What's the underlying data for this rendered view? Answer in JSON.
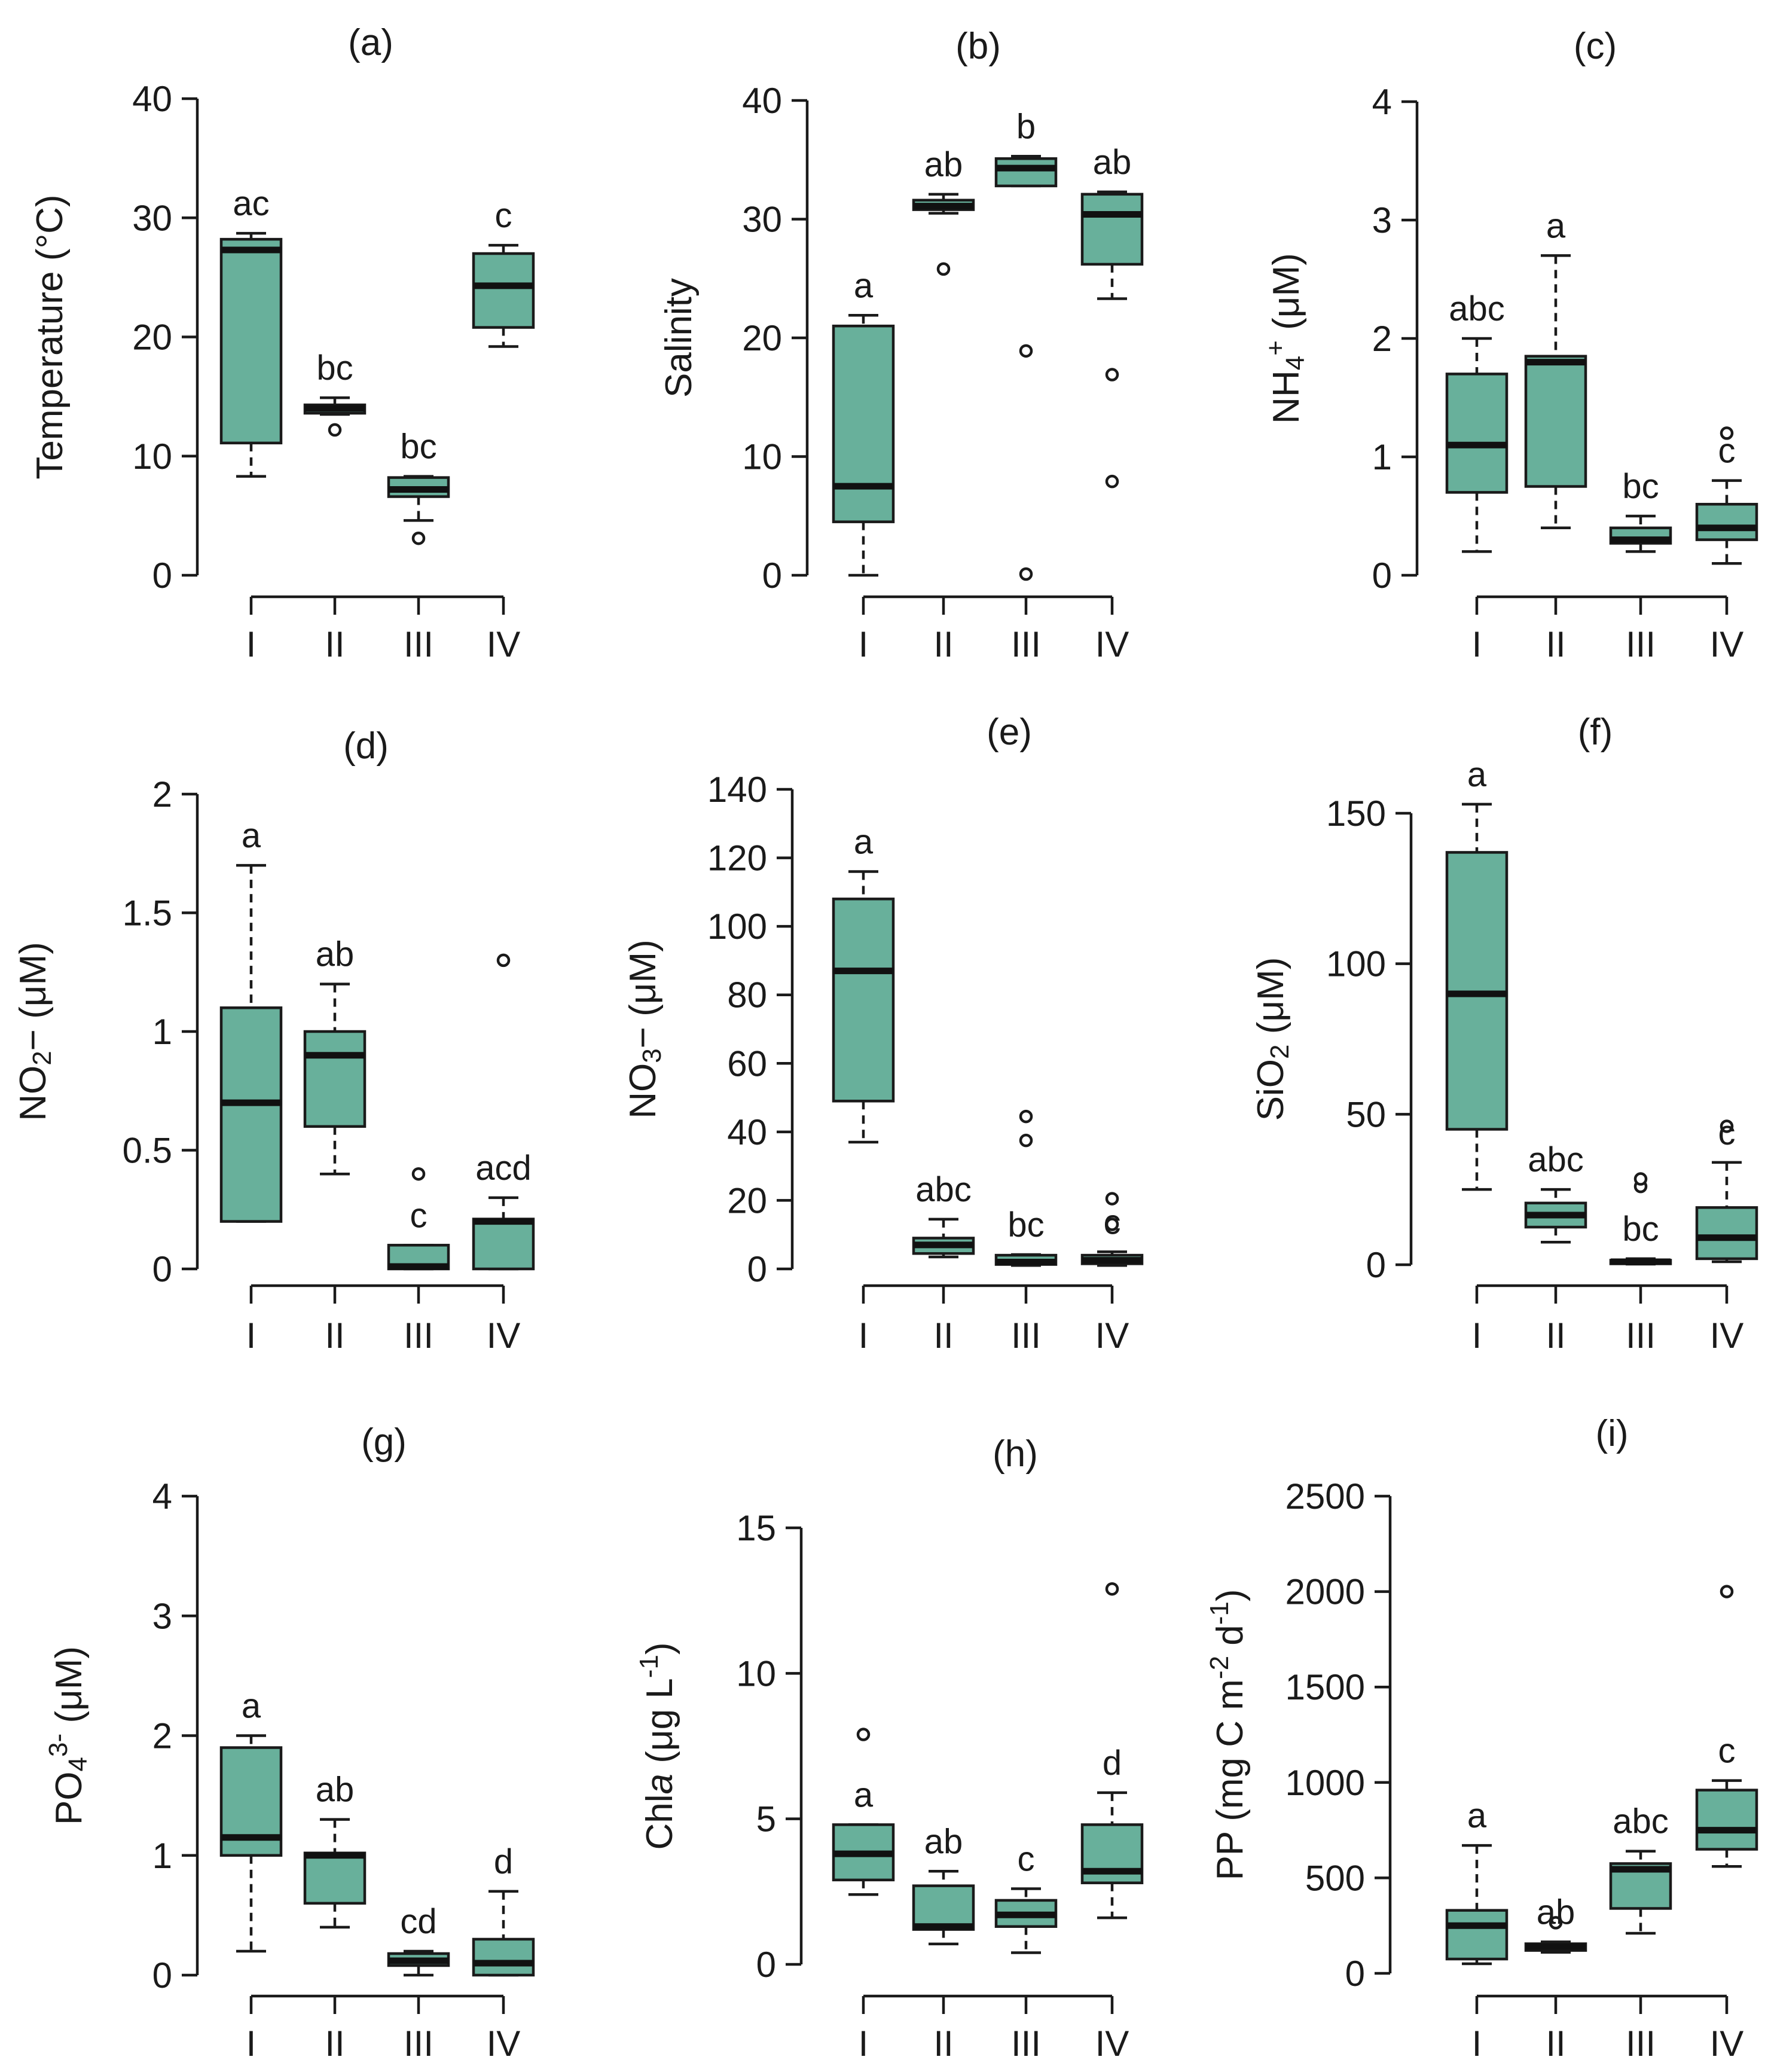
{
  "chart_data": [
    {
      "type": "box",
      "panel": "(a)",
      "ylabel_parts": [
        {
          "t": "Temperature (°C)"
        }
      ],
      "categories": [
        "I",
        "II",
        "III",
        "IV"
      ],
      "yticks": [
        "0",
        "10",
        "20",
        "30",
        "40"
      ],
      "ylim": [
        0,
        40
      ],
      "boxes": [
        {
          "min": 8.3,
          "q1": 11.1,
          "median": 27.3,
          "q3": 28.2,
          "max": 28.7,
          "outliers": [],
          "letter": "ac"
        },
        {
          "min": 13.5,
          "q1": 13.6,
          "median": 14.0,
          "q3": 14.3,
          "max": 14.9,
          "outliers": [
            12.2
          ],
          "letter": "bc"
        },
        {
          "min": 4.6,
          "q1": 6.6,
          "median": 7.2,
          "q3": 8.2,
          "max": 8.3,
          "outliers": [
            3.1
          ],
          "letter": "bc"
        },
        {
          "min": 19.2,
          "q1": 20.8,
          "median": 24.3,
          "q3": 27.0,
          "max": 27.7,
          "outliers": [],
          "letter": "c"
        }
      ]
    },
    {
      "type": "box",
      "panel": "(b)",
      "ylabel_parts": [
        {
          "t": "Salinity"
        }
      ],
      "categories": [
        "I",
        "II",
        "III",
        "IV"
      ],
      "yticks": [
        "0",
        "10",
        "20",
        "30",
        "40"
      ],
      "ylim": [
        0,
        40
      ],
      "boxes": [
        {
          "min": 0.0,
          "q1": 4.5,
          "median": 7.5,
          "q3": 21.0,
          "max": 21.9,
          "outliers": [],
          "letter": "a"
        },
        {
          "min": 30.5,
          "q1": 30.8,
          "median": 31.1,
          "q3": 31.6,
          "max": 32.1,
          "outliers": [
            25.8
          ],
          "letter": "ab"
        },
        {
          "min": 32.8,
          "q1": 32.8,
          "median": 34.3,
          "q3": 35.1,
          "max": 35.3,
          "outliers": [
            18.9,
            0.1
          ],
          "letter": "b"
        },
        {
          "min": 23.3,
          "q1": 26.2,
          "median": 30.4,
          "q3": 32.1,
          "max": 32.3,
          "outliers": [
            16.9,
            7.9
          ],
          "letter": "ab"
        }
      ]
    },
    {
      "type": "box",
      "panel": "(c)",
      "ylabel_parts": [
        {
          "t": "NH"
        },
        {
          "t": "4",
          "sub": true
        },
        {
          "t": "+",
          "sup": true
        },
        {
          "t": " (μM)"
        }
      ],
      "categories": [
        "I",
        "II",
        "III",
        "IV"
      ],
      "yticks": [
        "0",
        "1",
        "2",
        "3",
        "4"
      ],
      "ylim": [
        0,
        4
      ],
      "boxes": [
        {
          "min": 0.2,
          "q1": 0.7,
          "median": 1.1,
          "q3": 1.7,
          "max": 2.0,
          "outliers": [],
          "letter": "abc"
        },
        {
          "min": 0.4,
          "q1": 0.75,
          "median": 1.8,
          "q3": 1.85,
          "max": 2.7,
          "outliers": [],
          "letter": "a"
        },
        {
          "min": 0.2,
          "q1": 0.27,
          "median": 0.3,
          "q3": 0.4,
          "max": 0.5,
          "outliers": [],
          "letter": "bc"
        },
        {
          "min": 0.1,
          "q1": 0.3,
          "median": 0.4,
          "q3": 0.6,
          "max": 0.8,
          "outliers": [
            1.2
          ],
          "letter": "c"
        }
      ]
    },
    {
      "type": "box",
      "panel": "(d)",
      "ylabel_parts": [
        {
          "t": "NO"
        },
        {
          "t": "2",
          "sub": true
        },
        {
          "t": "− (μM)"
        }
      ],
      "categories": [
        "I",
        "II",
        "III",
        "IV"
      ],
      "yticks": [
        "0",
        "0.5",
        "1",
        "1.5",
        "2"
      ],
      "ylim": [
        0,
        2
      ],
      "boxes": [
        {
          "min": 0.2,
          "q1": 0.2,
          "median": 0.7,
          "q3": 1.1,
          "max": 1.7,
          "outliers": [],
          "letter": "a"
        },
        {
          "min": 0.4,
          "q1": 0.6,
          "median": 0.9,
          "q3": 1.0,
          "max": 1.2,
          "outliers": [],
          "letter": "ab"
        },
        {
          "min": 0.0,
          "q1": 0.0,
          "median": 0.01,
          "q3": 0.1,
          "max": 0.1,
          "outliers": [
            0.4
          ],
          "letter": "c"
        },
        {
          "min": 0.0,
          "q1": 0.0,
          "median": 0.2,
          "q3": 0.21,
          "max": 0.3,
          "outliers": [
            1.3
          ],
          "letter": "acd"
        }
      ]
    },
    {
      "type": "box",
      "panel": "(e)",
      "ylabel_parts": [
        {
          "t": "NO"
        },
        {
          "t": "3",
          "sub": true
        },
        {
          "t": "− (μM)"
        }
      ],
      "categories": [
        "I",
        "II",
        "III",
        "IV"
      ],
      "yticks": [
        "0",
        "20",
        "40",
        "60",
        "80",
        "100",
        "120",
        "140"
      ],
      "ylim": [
        0,
        140
      ],
      "boxes": [
        {
          "min": 37.0,
          "q1": 49.0,
          "median": 87.0,
          "q3": 108.0,
          "max": 116.0,
          "outliers": [],
          "letter": "a"
        },
        {
          "min": 3.5,
          "q1": 4.5,
          "median": 7.0,
          "q3": 9.0,
          "max": 14.5,
          "outliers": [],
          "letter": "abc"
        },
        {
          "min": 1.0,
          "q1": 1.3,
          "median": 2.0,
          "q3": 4.0,
          "max": 4.2,
          "outliers": [
            37.5,
            44.5
          ],
          "letter": "bc"
        },
        {
          "min": 1.0,
          "q1": 1.5,
          "median": 2.5,
          "q3": 4.0,
          "max": 5.0,
          "outliers": [
            13.0,
            20.5
          ],
          "letter": "c"
        }
      ]
    },
    {
      "type": "box",
      "panel": "(f)",
      "ylabel_parts": [
        {
          "t": "SiO"
        },
        {
          "t": "2",
          "sub": true
        },
        {
          "t": " (μM)"
        }
      ],
      "categories": [
        "I",
        "II",
        "III",
        "IV"
      ],
      "yticks": [
        "0",
        "50",
        "100",
        "150"
      ],
      "ylim": [
        0,
        150
      ],
      "boxes": [
        {
          "min": 25.0,
          "q1": 45.0,
          "median": 90.0,
          "q3": 137.0,
          "max": 153.0,
          "outliers": [],
          "letter": "a"
        },
        {
          "min": 7.5,
          "q1": 12.5,
          "median": 16.5,
          "q3": 20.5,
          "max": 25.0,
          "outliers": [],
          "letter": "abc"
        },
        {
          "min": 0.2,
          "q1": 0.5,
          "median": 1.0,
          "q3": 1.5,
          "max": 2.0,
          "outliers": [
            26.0,
            28.5
          ],
          "letter": "bc"
        },
        {
          "min": 1.0,
          "q1": 2.0,
          "median": 9.0,
          "q3": 19.0,
          "max": 34.0,
          "outliers": [
            46.0
          ],
          "letter": "c"
        }
      ]
    },
    {
      "type": "box",
      "panel": "(g)",
      "ylabel_parts": [
        {
          "t": "PO"
        },
        {
          "t": "4",
          "sub": true
        },
        {
          "t": "3-",
          "sup": true
        },
        {
          "t": " (μM)"
        }
      ],
      "categories": [
        "I",
        "II",
        "III",
        "IV"
      ],
      "yticks": [
        "0",
        "1",
        "2",
        "3",
        "4"
      ],
      "ylim": [
        0,
        4
      ],
      "boxes": [
        {
          "min": 0.2,
          "q1": 1.0,
          "median": 1.15,
          "q3": 1.9,
          "max": 2.0,
          "outliers": [],
          "letter": "a"
        },
        {
          "min": 0.4,
          "q1": 0.6,
          "median": 1.0,
          "q3": 1.02,
          "max": 1.3,
          "outliers": [],
          "letter": "ab"
        },
        {
          "min": 0.0,
          "q1": 0.08,
          "median": 0.12,
          "q3": 0.18,
          "max": 0.2,
          "outliers": [],
          "letter": "cd"
        },
        {
          "min": 0.0,
          "q1": 0.0,
          "median": 0.1,
          "q3": 0.3,
          "max": 0.7,
          "outliers": [],
          "letter": "d"
        }
      ]
    },
    {
      "type": "box",
      "panel": "(h)",
      "ylabel_parts": [
        {
          "t": "Chl"
        },
        {
          "t": "a",
          "it": true
        },
        {
          "t": "  (μg L"
        },
        {
          "t": "-1",
          "sup": true
        },
        {
          "t": ")"
        }
      ],
      "categories": [
        "I",
        "II",
        "III",
        "IV"
      ],
      "yticks": [
        "0",
        "5",
        "10",
        "15"
      ],
      "ylim": [
        0,
        15
      ],
      "boxes": [
        {
          "min": 2.4,
          "q1": 2.9,
          "median": 3.8,
          "q3": 4.8,
          "max": 4.8,
          "outliers": [
            7.9
          ],
          "letter": "a"
        },
        {
          "min": 0.7,
          "q1": 1.2,
          "median": 1.3,
          "q3": 2.7,
          "max": 3.2,
          "outliers": [],
          "letter": "ab"
        },
        {
          "min": 0.4,
          "q1": 1.3,
          "median": 1.7,
          "q3": 2.2,
          "max": 2.6,
          "outliers": [],
          "letter": "c"
        },
        {
          "min": 1.6,
          "q1": 2.8,
          "median": 3.2,
          "q3": 4.8,
          "max": 5.9,
          "outliers": [
            12.9
          ],
          "letter": "d"
        }
      ]
    },
    {
      "type": "box",
      "panel": "(i)",
      "ylabel_parts": [
        {
          "t": "PP (mg C m"
        },
        {
          "t": "-2",
          "sup": true
        },
        {
          "t": " d"
        },
        {
          "t": "-1",
          "sup": true
        },
        {
          "t": ")"
        }
      ],
      "categories": [
        "I",
        "II",
        "III",
        "IV"
      ],
      "yticks": [
        "0",
        "500",
        "1000",
        "1500",
        "2000",
        "2500"
      ],
      "ylim": [
        0,
        2500
      ],
      "boxes": [
        {
          "min": 50,
          "q1": 75,
          "median": 250,
          "q3": 330,
          "max": 670,
          "outliers": [],
          "letter": "a"
        },
        {
          "min": 110,
          "q1": 120,
          "median": 140,
          "q3": 155,
          "max": 165,
          "outliers": [
            265
          ],
          "letter": "ab"
        },
        {
          "min": 210,
          "q1": 340,
          "median": 545,
          "q3": 575,
          "max": 640,
          "outliers": [],
          "letter": "abc"
        },
        {
          "min": 560,
          "q1": 650,
          "median": 750,
          "q3": 960,
          "max": 1010,
          "outliers": [
            2000
          ],
          "letter": "c"
        }
      ]
    }
  ]
}
